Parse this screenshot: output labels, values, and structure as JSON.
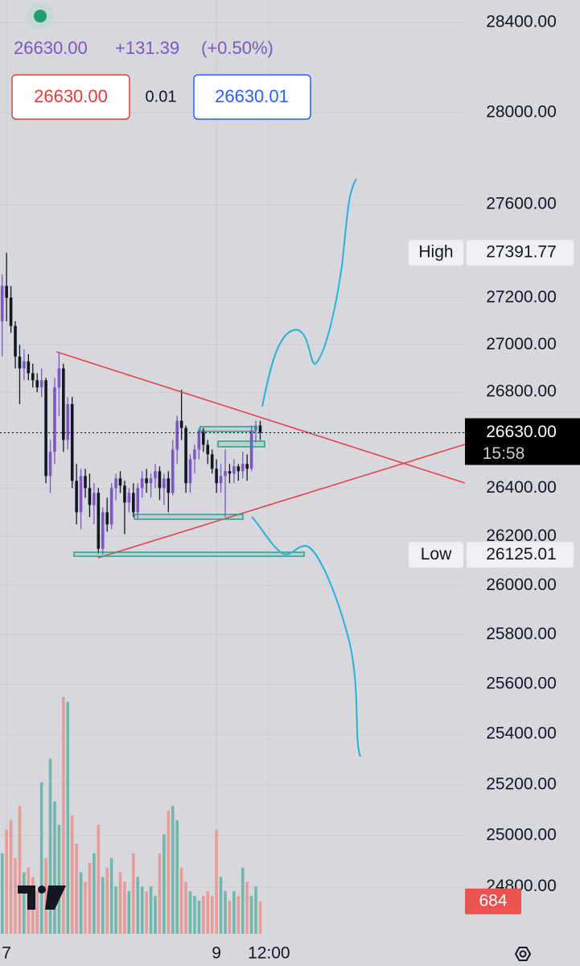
{
  "header": {
    "price": "26630.00",
    "change": "+131.39",
    "change_pct": "(+0.50%)"
  },
  "order_panel": {
    "sell": "26630.00",
    "spread": "0.01",
    "buy": "26630.01"
  },
  "chart_data": {
    "type": "candlestick",
    "log_scale": true,
    "grid": true,
    "up_color": "#7e57c2",
    "down_color": "#131722",
    "volume_up_color": "#6fb8ad",
    "volume_down_color": "#e89c9a",
    "x": [
      -1,
      0,
      1,
      2,
      3,
      4,
      5,
      6,
      7,
      8,
      9,
      10,
      11,
      12,
      13,
      14,
      15,
      16,
      17,
      18,
      19,
      20,
      21,
      22,
      23,
      24,
      25,
      26,
      27,
      28,
      29,
      30,
      31,
      32,
      33,
      34,
      35,
      36,
      37,
      38,
      39,
      40,
      41,
      42,
      43,
      44,
      45,
      46,
      47,
      48,
      49,
      50,
      51,
      52,
      53,
      54,
      55,
      56,
      57,
      58
    ],
    "open": [
      27100,
      27250,
      27200,
      27080,
      26950,
      26900,
      26930,
      26880,
      26850,
      26820,
      26850,
      26450,
      26550,
      26820,
      26900,
      26600,
      26750,
      26430,
      26300,
      26450,
      26400,
      26330,
      26380,
      26150,
      26300,
      26250,
      26400,
      26440,
      26410,
      26340,
      26380,
      26300,
      26400,
      26440,
      26420,
      26440,
      26470,
      26400,
      26440,
      26380,
      26560,
      26680,
      26650,
      26420,
      26520,
      26560,
      26640,
      26580,
      26540,
      26480,
      26420,
      26450,
      26470,
      26460,
      26490,
      26470,
      26500,
      26480,
      26640,
      26660
    ],
    "high": [
      27300,
      27391.77,
      27250,
      27100,
      27000,
      26980,
      26960,
      26920,
      26880,
      26900,
      26860,
      26600,
      26860,
      26970,
      26920,
      26780,
      26780,
      26500,
      26480,
      26480,
      26460,
      26420,
      26400,
      26320,
      26360,
      26420,
      26460,
      26470,
      26430,
      26400,
      26420,
      26420,
      26470,
      26480,
      26460,
      26500,
      26490,
      26460,
      26470,
      26600,
      26700,
      26810,
      26660,
      26540,
      26580,
      26650,
      26650,
      26600,
      26560,
      26520,
      26500,
      26560,
      26500,
      26520,
      26500,
      26550,
      26540,
      26660,
      26680,
      26680
    ],
    "low": [
      26950,
      27100,
      27050,
      26900,
      26750,
      26850,
      26850,
      26820,
      26800,
      26780,
      26420,
      26380,
      26500,
      26700,
      26550,
      26560,
      26400,
      26250,
      26230,
      26360,
      26280,
      26250,
      26130,
      26125.01,
      26220,
      26230,
      26350,
      26380,
      26210,
      26300,
      26280,
      26270,
      26360,
      26380,
      26360,
      26400,
      26350,
      26330,
      26300,
      26370,
      26500,
      26600,
      26380,
      26380,
      26460,
      26520,
      26550,
      26500,
      26460,
      26380,
      26380,
      26280,
      26420,
      26420,
      26430,
      26440,
      26430,
      26470,
      26590,
      26600
    ],
    "close": [
      27250,
      27200,
      27080,
      26950,
      26900,
      26930,
      26880,
      26850,
      26820,
      26850,
      26450,
      26550,
      26820,
      26900,
      26600,
      26750,
      26430,
      26300,
      26450,
      26400,
      26330,
      26380,
      26150,
      26300,
      26250,
      26400,
      26440,
      26410,
      26340,
      26380,
      26300,
      26400,
      26440,
      26420,
      26440,
      26470,
      26400,
      26440,
      26380,
      26560,
      26680,
      26650,
      26420,
      26520,
      26560,
      26640,
      26580,
      26540,
      26480,
      26420,
      26450,
      26470,
      26460,
      26490,
      26470,
      26500,
      26480,
      26640,
      26660,
      26630
    ],
    "volume": [
      1700,
      2200,
      2400,
      1600,
      2700,
      1300,
      1400,
      1200,
      900,
      3200,
      1600,
      3700,
      2800,
      2300,
      5000,
      4900,
      2500,
      1900,
      1300,
      1100,
      1500,
      1700,
      2300,
      1200,
      1400,
      1600,
      1000,
      1300,
      1100,
      900,
      1700,
      1200,
      1000,
      900,
      1000,
      800,
      1700,
      2100,
      2600,
      2700,
      2400,
      1400,
      1100,
      900,
      800,
      700,
      800,
      900,
      800,
      2200,
      1200,
      900,
      700,
      900,
      800,
      1400,
      1100,
      800,
      1000,
      684
    ],
    "volume_ylim": [
      0,
      5100
    ],
    "xlim": [
      -1.5,
      105
    ],
    "xticks": [
      {
        "value": 0,
        "label": "7"
      },
      {
        "value": 48,
        "label": "9"
      },
      {
        "value": 60,
        "label": "12:00"
      }
    ],
    "ylim": [
      24700,
      28500
    ],
    "yticks": [
      {
        "value": 28400,
        "label": "28400.00"
      },
      {
        "value": 28000,
        "label": "28000.00"
      },
      {
        "value": 27600,
        "label": "27600.00"
      },
      {
        "value": 27200,
        "label": "27200.00"
      },
      {
        "value": 27000,
        "label": "27000.00"
      },
      {
        "value": 26800,
        "label": "26800.00"
      },
      {
        "value": 26400,
        "label": "26400.00"
      },
      {
        "value": 26200,
        "label": "26200.00"
      },
      {
        "value": 26000,
        "label": "26000.00"
      },
      {
        "value": 25800,
        "label": "25800.00"
      },
      {
        "value": 25600,
        "label": "25600.00"
      },
      {
        "value": 25400,
        "label": "25400.00"
      },
      {
        "value": 25200,
        "label": "25200.00"
      },
      {
        "value": 25000,
        "label": "25000.00"
      },
      {
        "value": 24800,
        "label": "24800.00"
      }
    ],
    "high_label": "High",
    "low_label": "Low",
    "last_price_label": "26630.00",
    "countdown": "15:58"
  }
}
